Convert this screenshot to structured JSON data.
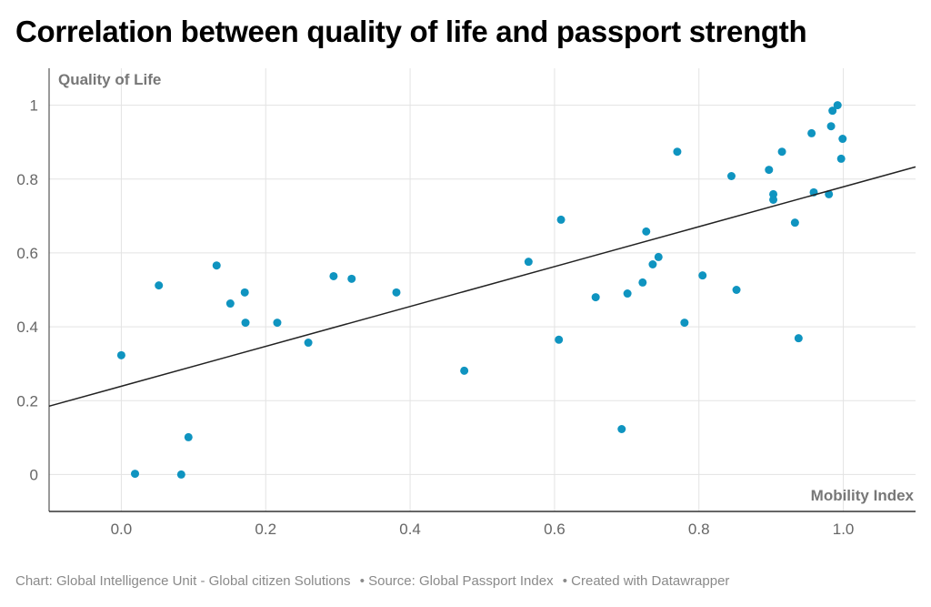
{
  "title": "Correlation between quality of life and passport strength",
  "footer": {
    "chart_credit": "Chart: Global Intelligence Unit - Global citizen Solutions",
    "source": "• Source: Global Passport Index",
    "created": "• Created with Datawrapper"
  },
  "colors": {
    "points": "#0f94c0",
    "trendline": "#222222",
    "grid": "#e3e3e3"
  },
  "chart_data": {
    "type": "scatter",
    "title": "Correlation between quality of life and passport strength",
    "xlabel": "Mobility Index",
    "ylabel": "Quality of Life",
    "xlim": [
      -0.1,
      1.1
    ],
    "ylim": [
      -0.1,
      1.1
    ],
    "x_ticks": [
      "0.0",
      "0.2",
      "0.4",
      "0.6",
      "0.8",
      "1.0"
    ],
    "y_ticks": [
      "0",
      "0.2",
      "0.4",
      "0.6",
      "0.8",
      "1"
    ],
    "grid": true,
    "trendline": {
      "slope": 0.54,
      "intercept": 0.239
    },
    "points": [
      [
        0.0,
        0.323
      ],
      [
        0.019,
        0.002
      ],
      [
        0.052,
        0.512
      ],
      [
        0.083,
        0.0
      ],
      [
        0.093,
        0.101
      ],
      [
        0.132,
        0.566
      ],
      [
        0.151,
        0.463
      ],
      [
        0.171,
        0.493
      ],
      [
        0.172,
        0.411
      ],
      [
        0.216,
        0.411
      ],
      [
        0.259,
        0.357
      ],
      [
        0.294,
        0.537
      ],
      [
        0.319,
        0.53
      ],
      [
        0.381,
        0.493
      ],
      [
        0.475,
        0.281
      ],
      [
        0.564,
        0.576
      ],
      [
        0.606,
        0.365
      ],
      [
        0.609,
        0.69
      ],
      [
        0.657,
        0.48
      ],
      [
        0.693,
        0.123
      ],
      [
        0.701,
        0.49
      ],
      [
        0.722,
        0.52
      ],
      [
        0.727,
        0.658
      ],
      [
        0.736,
        0.569
      ],
      [
        0.744,
        0.589
      ],
      [
        0.77,
        0.874
      ],
      [
        0.78,
        0.411
      ],
      [
        0.805,
        0.539
      ],
      [
        0.845,
        0.808
      ],
      [
        0.852,
        0.5
      ],
      [
        0.897,
        0.825
      ],
      [
        0.903,
        0.759
      ],
      [
        0.903,
        0.744
      ],
      [
        0.915,
        0.874
      ],
      [
        0.933,
        0.682
      ],
      [
        0.938,
        0.369
      ],
      [
        0.956,
        0.924
      ],
      [
        0.959,
        0.764
      ],
      [
        0.98,
        0.759
      ],
      [
        0.983,
        0.943
      ],
      [
        0.985,
        0.985
      ],
      [
        0.992,
        1.0
      ],
      [
        0.997,
        0.855
      ],
      [
        0.999,
        0.909
      ]
    ]
  }
}
